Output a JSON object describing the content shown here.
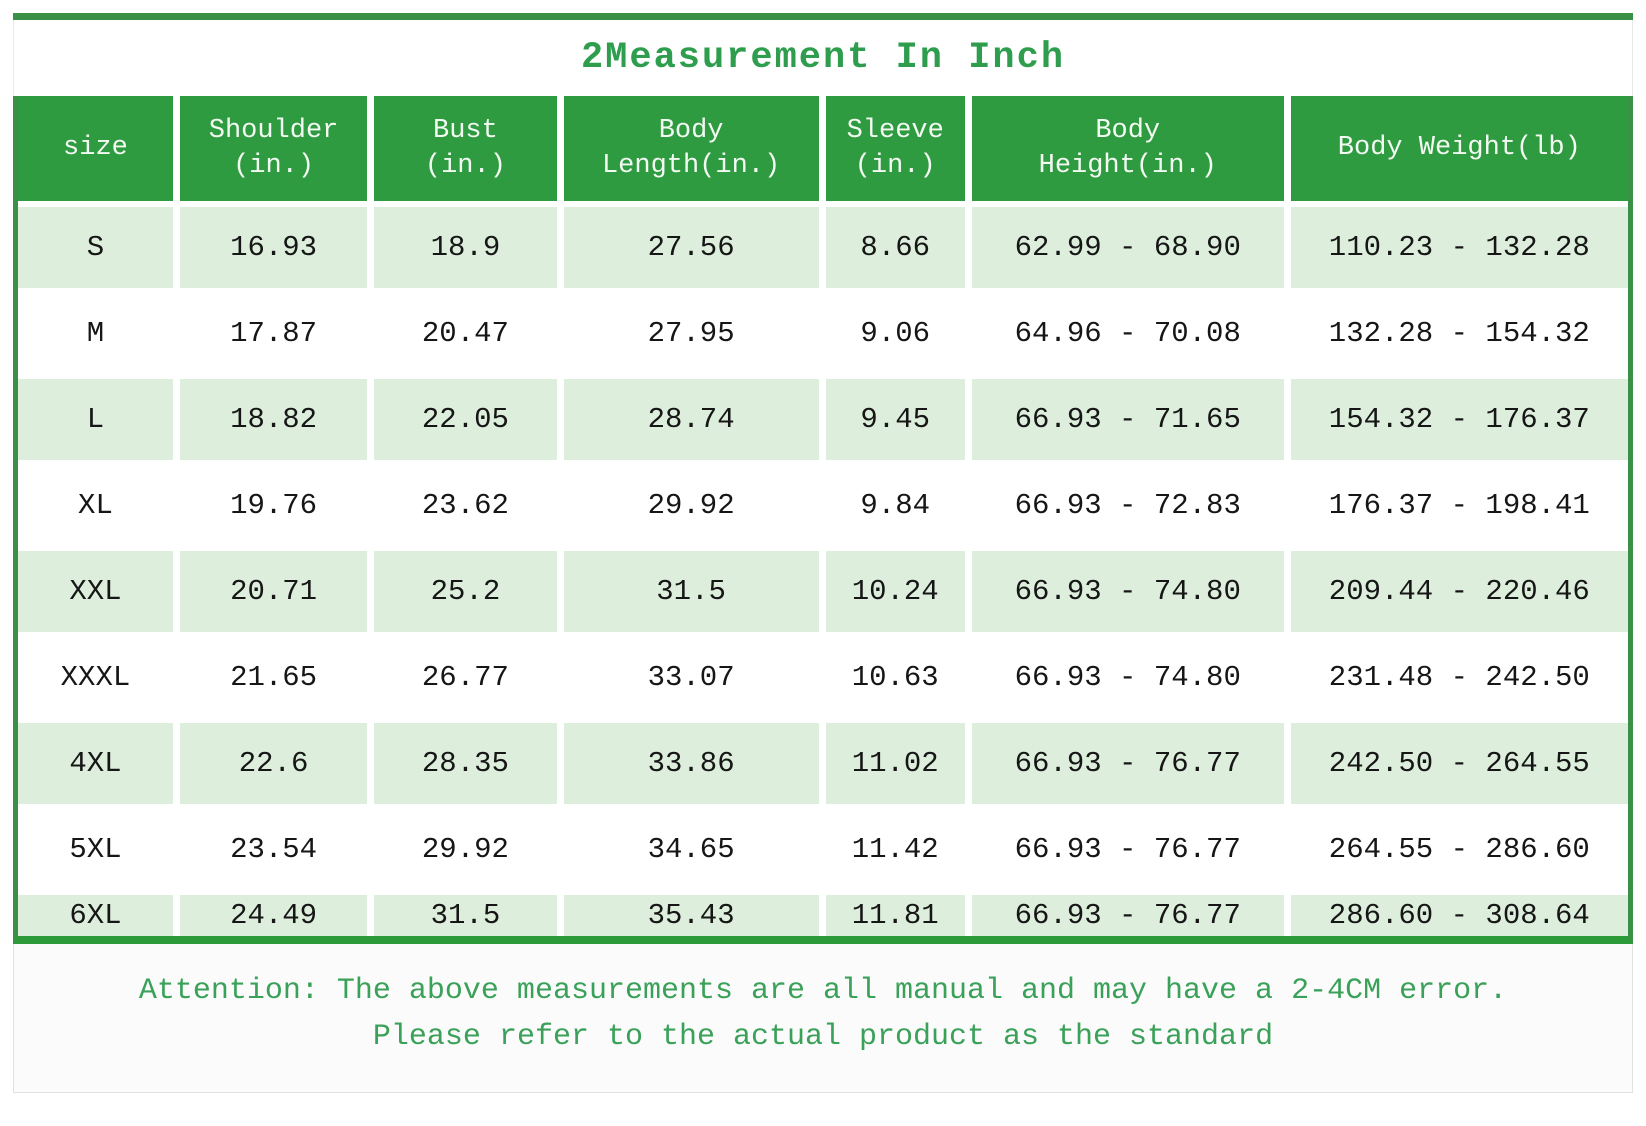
{
  "title": "2Measurement In Inch",
  "note": {
    "line1": "Attention: The above measurements are all manual and may have a 2-4CM error.",
    "line2": "Please refer to the actual product as the standard"
  },
  "table": {
    "headers": [
      [
        "size"
      ],
      [
        "Shoulder",
        "(in.)"
      ],
      [
        "Bust",
        "(in.)"
      ],
      [
        "Body",
        "Length(in.)"
      ],
      [
        "Sleeve",
        "(in.)"
      ],
      [
        "Body",
        "Height(in.)"
      ],
      [
        "Body Weight(lb)"
      ]
    ],
    "rows": [
      [
        "S",
        "16.93",
        "18.9",
        "27.56",
        "8.66",
        "62.99 - 68.90",
        "110.23 - 132.28"
      ],
      [
        "M",
        "17.87",
        "20.47",
        "27.95",
        "9.06",
        "64.96 - 70.08",
        "132.28 - 154.32"
      ],
      [
        "L",
        "18.82",
        "22.05",
        "28.74",
        "9.45",
        "66.93 - 71.65",
        "154.32 - 176.37"
      ],
      [
        "XL",
        "19.76",
        "23.62",
        "29.92",
        "9.84",
        "66.93 - 72.83",
        "176.37 - 198.41"
      ],
      [
        "XXL",
        "20.71",
        "25.2",
        "31.5",
        "10.24",
        "66.93 - 74.80",
        "209.44 - 220.46"
      ],
      [
        "XXXL",
        "21.65",
        "26.77",
        "33.07",
        "10.63",
        "66.93 - 74.80",
        "231.48 - 242.50"
      ],
      [
        "4XL",
        "22.6",
        "28.35",
        "33.86",
        "11.02",
        "66.93 - 76.77",
        "242.50 - 264.55"
      ],
      [
        "5XL",
        "23.54",
        "29.92",
        "34.65",
        "11.42",
        "66.93 - 76.77",
        "264.55 - 286.60"
      ],
      [
        "6XL",
        "24.49",
        "31.5",
        "35.43",
        "11.81",
        "66.93 - 76.77",
        "286.60 - 308.64"
      ]
    ]
  },
  "chart_data": {
    "type": "table",
    "title": "2Measurement In Inch",
    "columns": [
      "size",
      "Shoulder (in.)",
      "Bust (in.)",
      "Body Length(in.)",
      "Sleeve (in.)",
      "Body Height(in.)",
      "Body Weight(lb)"
    ],
    "rows": [
      {
        "size": "S",
        "shoulder_in": 16.93,
        "bust_in": 18.9,
        "body_length_in": 27.56,
        "sleeve_in": 8.66,
        "body_height_in": "62.99 - 68.90",
        "body_weight_lb": "110.23 - 132.28"
      },
      {
        "size": "M",
        "shoulder_in": 17.87,
        "bust_in": 20.47,
        "body_length_in": 27.95,
        "sleeve_in": 9.06,
        "body_height_in": "64.96 - 70.08",
        "body_weight_lb": "132.28 - 154.32"
      },
      {
        "size": "L",
        "shoulder_in": 18.82,
        "bust_in": 22.05,
        "body_length_in": 28.74,
        "sleeve_in": 9.45,
        "body_height_in": "66.93 - 71.65",
        "body_weight_lb": "154.32 - 176.37"
      },
      {
        "size": "XL",
        "shoulder_in": 19.76,
        "bust_in": 23.62,
        "body_length_in": 29.92,
        "sleeve_in": 9.84,
        "body_height_in": "66.93 - 72.83",
        "body_weight_lb": "176.37 - 198.41"
      },
      {
        "size": "XXL",
        "shoulder_in": 20.71,
        "bust_in": 25.2,
        "body_length_in": 31.5,
        "sleeve_in": 10.24,
        "body_height_in": "66.93 - 74.80",
        "body_weight_lb": "209.44 - 220.46"
      },
      {
        "size": "XXXL",
        "shoulder_in": 21.65,
        "bust_in": 26.77,
        "body_length_in": 33.07,
        "sleeve_in": 10.63,
        "body_height_in": "66.93 - 74.80",
        "body_weight_lb": "231.48 - 242.50"
      },
      {
        "size": "4XL",
        "shoulder_in": 22.6,
        "bust_in": 28.35,
        "body_length_in": 33.86,
        "sleeve_in": 11.02,
        "body_height_in": "66.93 - 76.77",
        "body_weight_lb": "242.50 - 264.55"
      },
      {
        "size": "5XL",
        "shoulder_in": 23.54,
        "bust_in": 29.92,
        "body_length_in": 34.65,
        "sleeve_in": 11.42,
        "body_height_in": "66.93 - 76.77",
        "body_weight_lb": "264.55 - 286.60"
      },
      {
        "size": "6XL",
        "shoulder_in": 24.49,
        "bust_in": 31.5,
        "body_length_in": 35.43,
        "sleeve_in": 11.81,
        "body_height_in": "66.93 - 76.77",
        "body_weight_lb": "286.60 - 308.64"
      }
    ],
    "footnote": "Attention: The above measurements are all manual and may have a 2-4CM error. Please refer to the actual product as the standard"
  },
  "colors": {
    "header_green": "#2f9b40",
    "row_light_green": "#ddefdc",
    "border_green": "#3a9145",
    "bottom_border_green": "#2c9a38",
    "title_green": "#2e9e4e",
    "note_green": "#3aa159",
    "text_dark": "#161616"
  }
}
